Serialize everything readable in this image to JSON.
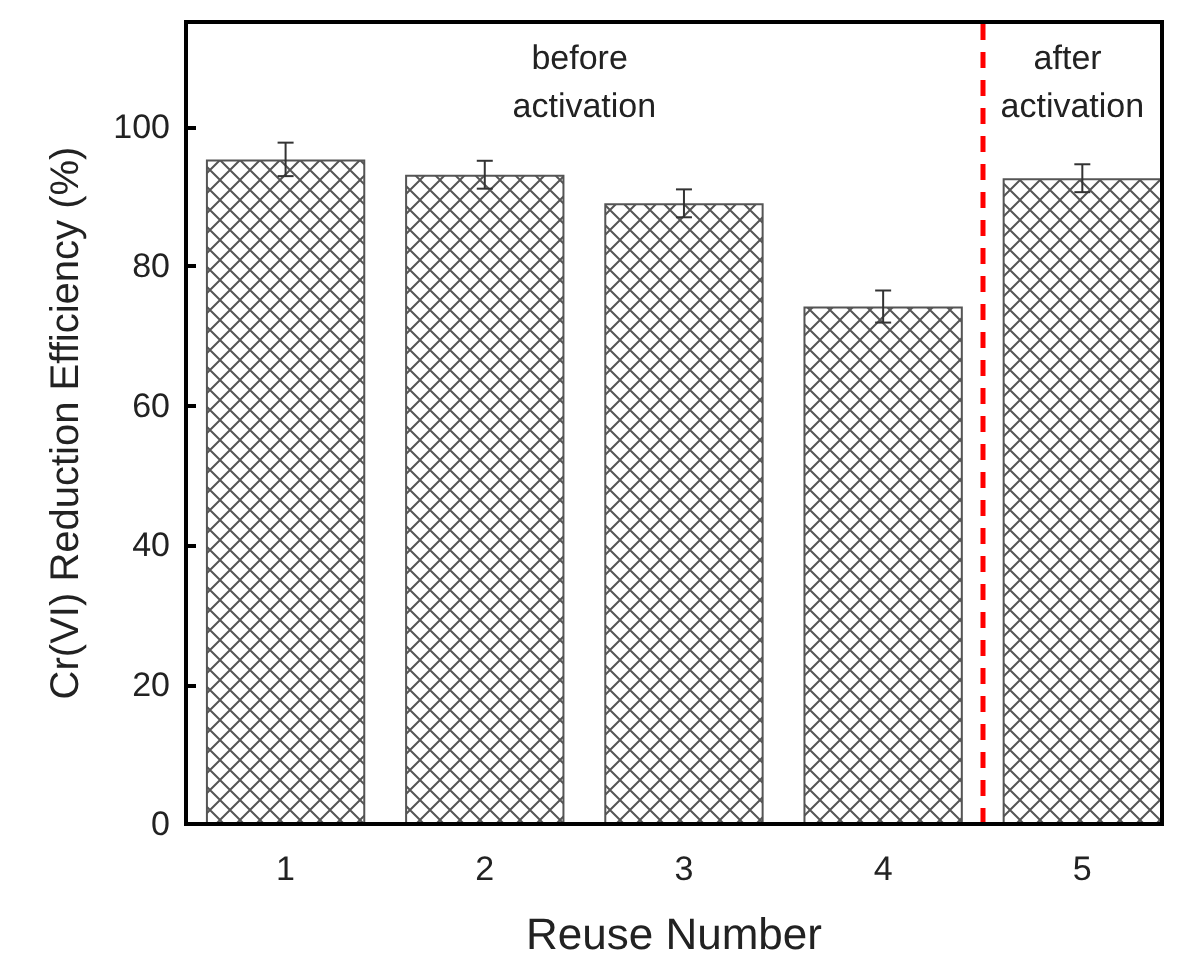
{
  "chart_data": {
    "type": "bar",
    "xlabel": "Reuse Number",
    "ylabel": "Cr(VI) Reduction Efficiency (%)",
    "x": [
      1,
      2,
      3,
      4,
      5
    ],
    "values": [
      95.3,
      93.1,
      89.0,
      74.2,
      92.6
    ],
    "errors": [
      2.4,
      2,
      2,
      2.3,
      2
    ],
    "color": "#555555",
    "xlim": [
      0.5,
      5.4
    ],
    "xticks": [
      1,
      2,
      3,
      4,
      5
    ],
    "ylim": [
      0,
      115
    ],
    "yticks": [
      0,
      20,
      40,
      60,
      80,
      100
    ],
    "grid": false,
    "ref_lines": [
      {
        "axis": "x",
        "value": 4.5,
        "label": null,
        "color": "#ff0000",
        "line_style": "dashed"
      }
    ],
    "annotations": [
      "before activation",
      "after activation"
    ]
  }
}
